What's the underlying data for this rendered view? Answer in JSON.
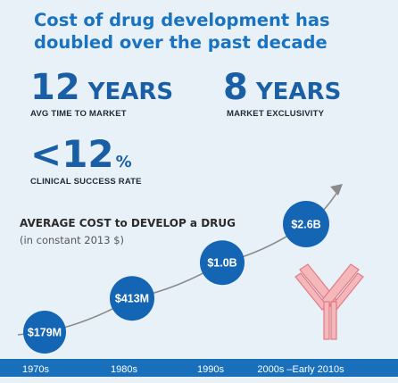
{
  "header": {
    "title": "Cost of drug development has doubled over the past decade"
  },
  "stats": {
    "avg_time": {
      "number": "12",
      "unit": "YEARS",
      "caption": "AVG TIME TO MARKET"
    },
    "exclusivity": {
      "number": "8",
      "unit": "YEARS",
      "caption": "MARKET EXCLUSIVITY"
    },
    "success": {
      "number": "<12",
      "unit": "%",
      "caption": "CLINICAL SUCCESS RATE"
    }
  },
  "colors": {
    "background": "#e8f1f8",
    "accent": "#1a6fba",
    "bubble": "#1565b5",
    "curve": "#8a8a8a",
    "antibody_fill": "#f6b7bb",
    "antibody_stroke": "#e07b85"
  },
  "icons": {
    "growth_arrow": "arrow-up-right-icon",
    "antibody": "antibody-icon"
  },
  "chart_data": {
    "type": "line",
    "title": "AVERAGE COST to DEVELOP a DRUG",
    "subtitle": "(in constant 2013 $)",
    "categories": [
      "1970s",
      "1980s",
      "1990s",
      "2000s –Early 2010s"
    ],
    "values": [
      179,
      413,
      1000,
      2600
    ],
    "value_labels": [
      "$179M",
      "$413M",
      "$1.0B",
      "$2.6B"
    ],
    "units": "USD millions",
    "grid": false,
    "legend": "none"
  }
}
